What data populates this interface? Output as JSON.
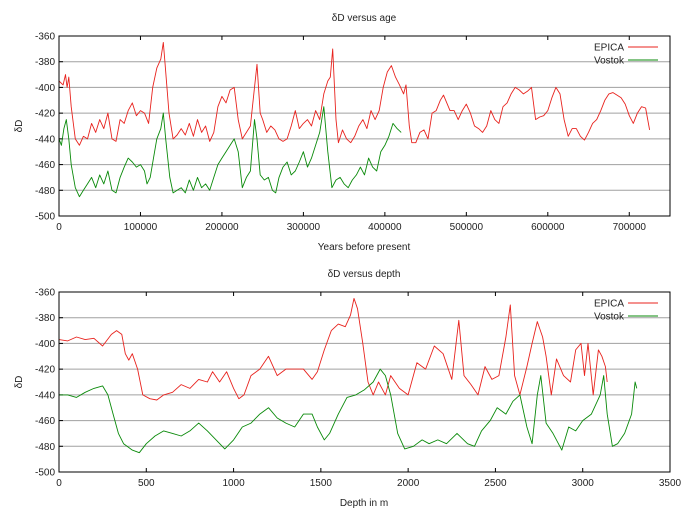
{
  "chart_data": [
    {
      "type": "line",
      "title": "δD versus age",
      "xlabel": "Years before present",
      "ylabel": "δD",
      "xlim": [
        0,
        750000
      ],
      "ylim": [
        -500,
        -360
      ],
      "xticks": [
        0,
        100000,
        200000,
        300000,
        400000,
        500000,
        600000,
        700000
      ],
      "yticks": [
        -500,
        -480,
        -460,
        -440,
        -420,
        -400,
        -380,
        -360
      ],
      "grid": "horizontal",
      "legend": "top-right",
      "series": [
        {
          "name": "EPICA",
          "color": "#e8231e",
          "x": [
            0,
            5000,
            8000,
            10000,
            12000,
            15000,
            20000,
            25000,
            30000,
            35000,
            40000,
            45000,
            50000,
            55000,
            60000,
            65000,
            70000,
            75000,
            80000,
            85000,
            90000,
            95000,
            100000,
            105000,
            110000,
            115000,
            120000,
            125000,
            128000,
            130000,
            135000,
            140000,
            145000,
            150000,
            155000,
            160000,
            165000,
            170000,
            175000,
            180000,
            185000,
            190000,
            195000,
            200000,
            205000,
            210000,
            215000,
            220000,
            225000,
            230000,
            235000,
            240000,
            243000,
            247000,
            250000,
            255000,
            260000,
            265000,
            270000,
            275000,
            280000,
            285000,
            290000,
            295000,
            300000,
            305000,
            310000,
            315000,
            320000,
            325000,
            330000,
            333000,
            336000,
            340000,
            343000,
            348000,
            353000,
            358000,
            363000,
            368000,
            373000,
            378000,
            383000,
            388000,
            393000,
            398000,
            403000,
            408000,
            413000,
            418000,
            423000,
            426000,
            430000,
            433000,
            438000,
            443000,
            448000,
            453000,
            458000,
            463000,
            468000,
            472000,
            476000,
            480000,
            485000,
            490000,
            495000,
            500000,
            505000,
            510000,
            515000,
            520000,
            525000,
            530000,
            535000,
            540000,
            545000,
            550000,
            555000,
            560000,
            565000,
            570000,
            575000,
            580000,
            585000,
            590000,
            595000,
            600000,
            605000,
            610000,
            615000,
            620000,
            625000,
            630000,
            635000,
            640000,
            645000,
            650000,
            655000,
            660000,
            665000,
            670000,
            675000,
            680000,
            685000,
            690000,
            695000,
            700000,
            705000,
            710000,
            715000,
            720000,
            725000
          ],
          "y": [
            -395,
            -398,
            -390,
            -400,
            -392,
            -415,
            -440,
            -445,
            -438,
            -440,
            -428,
            -435,
            -425,
            -432,
            -420,
            -440,
            -442,
            -425,
            -428,
            -418,
            -412,
            -422,
            -418,
            -420,
            -428,
            -400,
            -385,
            -378,
            -365,
            -380,
            -420,
            -440,
            -437,
            -432,
            -437,
            -428,
            -438,
            -425,
            -435,
            -430,
            -442,
            -435,
            -415,
            -407,
            -412,
            -402,
            -400,
            -425,
            -440,
            -435,
            -430,
            -400,
            -382,
            -420,
            -425,
            -435,
            -430,
            -433,
            -440,
            -442,
            -440,
            -430,
            -418,
            -432,
            -428,
            -425,
            -430,
            -418,
            -425,
            -405,
            -395,
            -392,
            -370,
            -425,
            -443,
            -433,
            -440,
            -443,
            -438,
            -430,
            -425,
            -432,
            -418,
            -425,
            -418,
            -400,
            -388,
            -383,
            -392,
            -398,
            -405,
            -398,
            -430,
            -443,
            -443,
            -435,
            -433,
            -440,
            -420,
            -418,
            -410,
            -406,
            -412,
            -418,
            -418,
            -425,
            -418,
            -413,
            -420,
            -430,
            -432,
            -435,
            -430,
            -418,
            -425,
            -428,
            -415,
            -412,
            -405,
            -400,
            -402,
            -405,
            -403,
            -400,
            -425,
            -423,
            -422,
            -418,
            -408,
            -400,
            -405,
            -425,
            -438,
            -432,
            -432,
            -438,
            -441,
            -435,
            -428,
            -425,
            -418,
            -410,
            -405,
            -404,
            -406,
            -408,
            -413,
            -422,
            -428,
            -420,
            -415,
            -416,
            -433
          ]
        },
        {
          "name": "Vostok",
          "color": "#0a8a0a",
          "x": [
            0,
            3000,
            6000,
            9000,
            12000,
            15000,
            20000,
            25000,
            30000,
            35000,
            40000,
            45000,
            50000,
            55000,
            60000,
            65000,
            70000,
            75000,
            80000,
            85000,
            90000,
            95000,
            100000,
            105000,
            108000,
            112000,
            116000,
            120000,
            125000,
            128000,
            131000,
            136000,
            140000,
            145000,
            150000,
            155000,
            160000,
            165000,
            170000,
            175000,
            180000,
            185000,
            190000,
            195000,
            200000,
            205000,
            210000,
            215000,
            220000,
            225000,
            230000,
            235000,
            240000,
            243000,
            247000,
            252000,
            257000,
            262000,
            266000,
            270000,
            275000,
            280000,
            285000,
            290000,
            295000,
            300000,
            305000,
            310000,
            315000,
            320000,
            325000,
            330000,
            335000,
            340000,
            345000,
            350000,
            355000,
            360000,
            365000,
            370000,
            375000,
            380000,
            385000,
            390000,
            395000,
            400000,
            405000,
            410000,
            415000,
            420000
          ],
          "y": [
            -440,
            -445,
            -432,
            -425,
            -440,
            -460,
            -478,
            -485,
            -480,
            -475,
            -470,
            -478,
            -468,
            -475,
            -465,
            -480,
            -482,
            -470,
            -462,
            -455,
            -458,
            -462,
            -460,
            -465,
            -475,
            -470,
            -455,
            -440,
            -432,
            -420,
            -440,
            -470,
            -482,
            -480,
            -478,
            -482,
            -472,
            -480,
            -470,
            -478,
            -475,
            -480,
            -470,
            -460,
            -455,
            -450,
            -445,
            -440,
            -450,
            -478,
            -470,
            -465,
            -425,
            -440,
            -468,
            -472,
            -470,
            -480,
            -482,
            -470,
            -462,
            -458,
            -468,
            -465,
            -458,
            -450,
            -462,
            -455,
            -445,
            -435,
            -415,
            -450,
            -478,
            -472,
            -470,
            -475,
            -478,
            -472,
            -468,
            -462,
            -468,
            -455,
            -462,
            -465,
            -450,
            -445,
            -438,
            -428,
            -432,
            -435
          ]
        }
      ]
    },
    {
      "type": "line",
      "title": "δD versus depth",
      "xlabel": "Depth in m",
      "ylabel": "δD",
      "xlim": [
        0,
        3500
      ],
      "ylim": [
        -500,
        -360
      ],
      "xticks": [
        0,
        500,
        1000,
        1500,
        2000,
        2500,
        3000,
        3500
      ],
      "yticks": [
        -500,
        -480,
        -460,
        -440,
        -420,
        -400,
        -380,
        -360
      ],
      "grid": "horizontal",
      "legend": "top-right",
      "series": [
        {
          "name": "EPICA",
          "color": "#e8231e",
          "x": [
            0,
            50,
            100,
            150,
            200,
            250,
            300,
            330,
            360,
            380,
            400,
            420,
            450,
            480,
            520,
            560,
            600,
            650,
            700,
            750,
            800,
            850,
            880,
            920,
            960,
            1000,
            1030,
            1060,
            1100,
            1150,
            1200,
            1250,
            1300,
            1350,
            1400,
            1450,
            1480,
            1520,
            1560,
            1600,
            1640,
            1670,
            1690,
            1710,
            1740,
            1770,
            1800,
            1830,
            1870,
            1900,
            1950,
            2000,
            2050,
            2100,
            2150,
            2200,
            2250,
            2290,
            2320,
            2360,
            2400,
            2440,
            2480,
            2520,
            2560,
            2585,
            2610,
            2640,
            2680,
            2710,
            2740,
            2770,
            2790,
            2820,
            2850,
            2890,
            2930,
            2960,
            2990,
            3010,
            3030,
            3060,
            3090,
            3110,
            3130,
            3140
          ],
          "y": [
            -397,
            -398,
            -395,
            -397,
            -396,
            -402,
            -393,
            -390,
            -393,
            -408,
            -413,
            -408,
            -420,
            -440,
            -443,
            -444,
            -440,
            -438,
            -432,
            -435,
            -428,
            -430,
            -422,
            -430,
            -422,
            -435,
            -443,
            -440,
            -425,
            -420,
            -410,
            -425,
            -420,
            -420,
            -420,
            -428,
            -422,
            -405,
            -390,
            -385,
            -387,
            -378,
            -365,
            -373,
            -400,
            -430,
            -440,
            -430,
            -440,
            -425,
            -435,
            -440,
            -415,
            -420,
            -402,
            -408,
            -428,
            -382,
            -425,
            -432,
            -440,
            -418,
            -428,
            -425,
            -395,
            -370,
            -425,
            -440,
            -418,
            -400,
            -383,
            -395,
            -410,
            -440,
            -412,
            -425,
            -430,
            -405,
            -400,
            -425,
            -400,
            -440,
            -405,
            -410,
            -418,
            -430
          ]
        },
        {
          "name": "Vostok",
          "color": "#0a8a0a",
          "x": [
            0,
            50,
            100,
            150,
            200,
            250,
            280,
            310,
            340,
            370,
            420,
            460,
            500,
            550,
            600,
            650,
            700,
            750,
            800,
            850,
            900,
            950,
            1000,
            1050,
            1100,
            1150,
            1200,
            1250,
            1300,
            1350,
            1400,
            1450,
            1480,
            1520,
            1550,
            1600,
            1650,
            1700,
            1750,
            1800,
            1840,
            1870,
            1900,
            1940,
            1980,
            2030,
            2080,
            2120,
            2170,
            2220,
            2280,
            2340,
            2380,
            2420,
            2470,
            2510,
            2560,
            2600,
            2640,
            2680,
            2710,
            2740,
            2760,
            2790,
            2830,
            2880,
            2920,
            2960,
            3000,
            3050,
            3100,
            3120,
            3140,
            3170,
            3200,
            3240,
            3280,
            3300,
            3310
          ],
          "y": [
            -440,
            -440,
            -442,
            -438,
            -435,
            -433,
            -440,
            -455,
            -470,
            -478,
            -483,
            -485,
            -478,
            -472,
            -468,
            -470,
            -472,
            -468,
            -462,
            -468,
            -475,
            -482,
            -475,
            -465,
            -462,
            -455,
            -450,
            -458,
            -462,
            -465,
            -455,
            -455,
            -465,
            -475,
            -470,
            -455,
            -442,
            -440,
            -436,
            -430,
            -420,
            -425,
            -440,
            -470,
            -482,
            -480,
            -475,
            -478,
            -475,
            -478,
            -470,
            -478,
            -480,
            -468,
            -460,
            -450,
            -455,
            -445,
            -440,
            -465,
            -478,
            -440,
            -425,
            -462,
            -470,
            -483,
            -465,
            -468,
            -460,
            -455,
            -440,
            -425,
            -455,
            -480,
            -478,
            -470,
            -455,
            -430,
            -435
          ]
        }
      ]
    }
  ]
}
